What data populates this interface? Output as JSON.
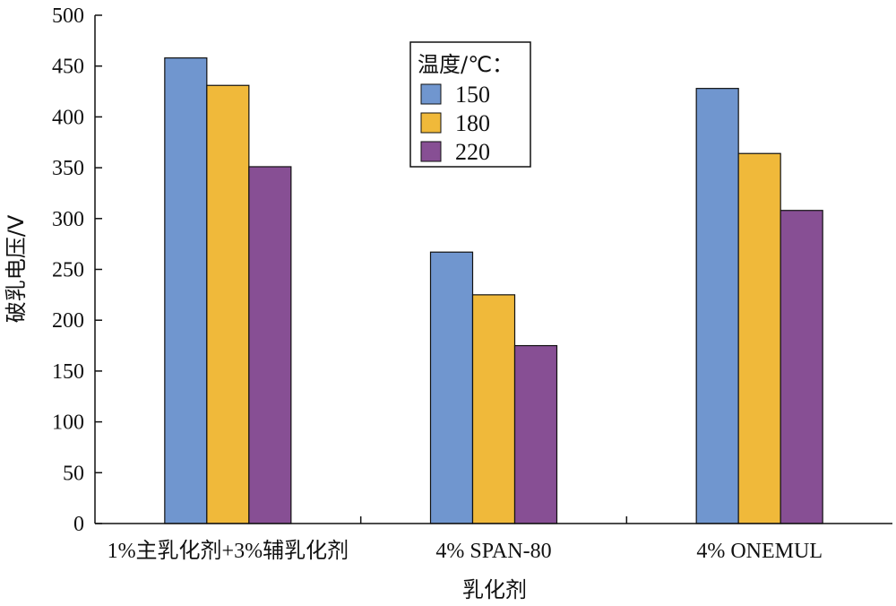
{
  "chart_data": {
    "type": "bar",
    "categories": [
      "1%主乳化剂+3%辅乳化剂",
      "4% SPAN-80",
      "4% ONEMUL"
    ],
    "series": [
      {
        "name": "150",
        "values": [
          458,
          267,
          428
        ],
        "color": "#7096cf"
      },
      {
        "name": "180",
        "values": [
          431,
          225,
          364
        ],
        "color": "#f0b93a"
      },
      {
        "name": "220",
        "values": [
          351,
          175,
          308
        ],
        "color": "#874f94"
      }
    ],
    "title": "",
    "xlabel": "乳化剂",
    "ylabel": "破乳电压/V",
    "ylim": [
      0,
      500
    ],
    "yticks": [
      0,
      50,
      100,
      150,
      200,
      250,
      300,
      350,
      400,
      450,
      500
    ],
    "legend": {
      "title": "温度/℃：",
      "position": "top-center"
    },
    "grid": false
  }
}
